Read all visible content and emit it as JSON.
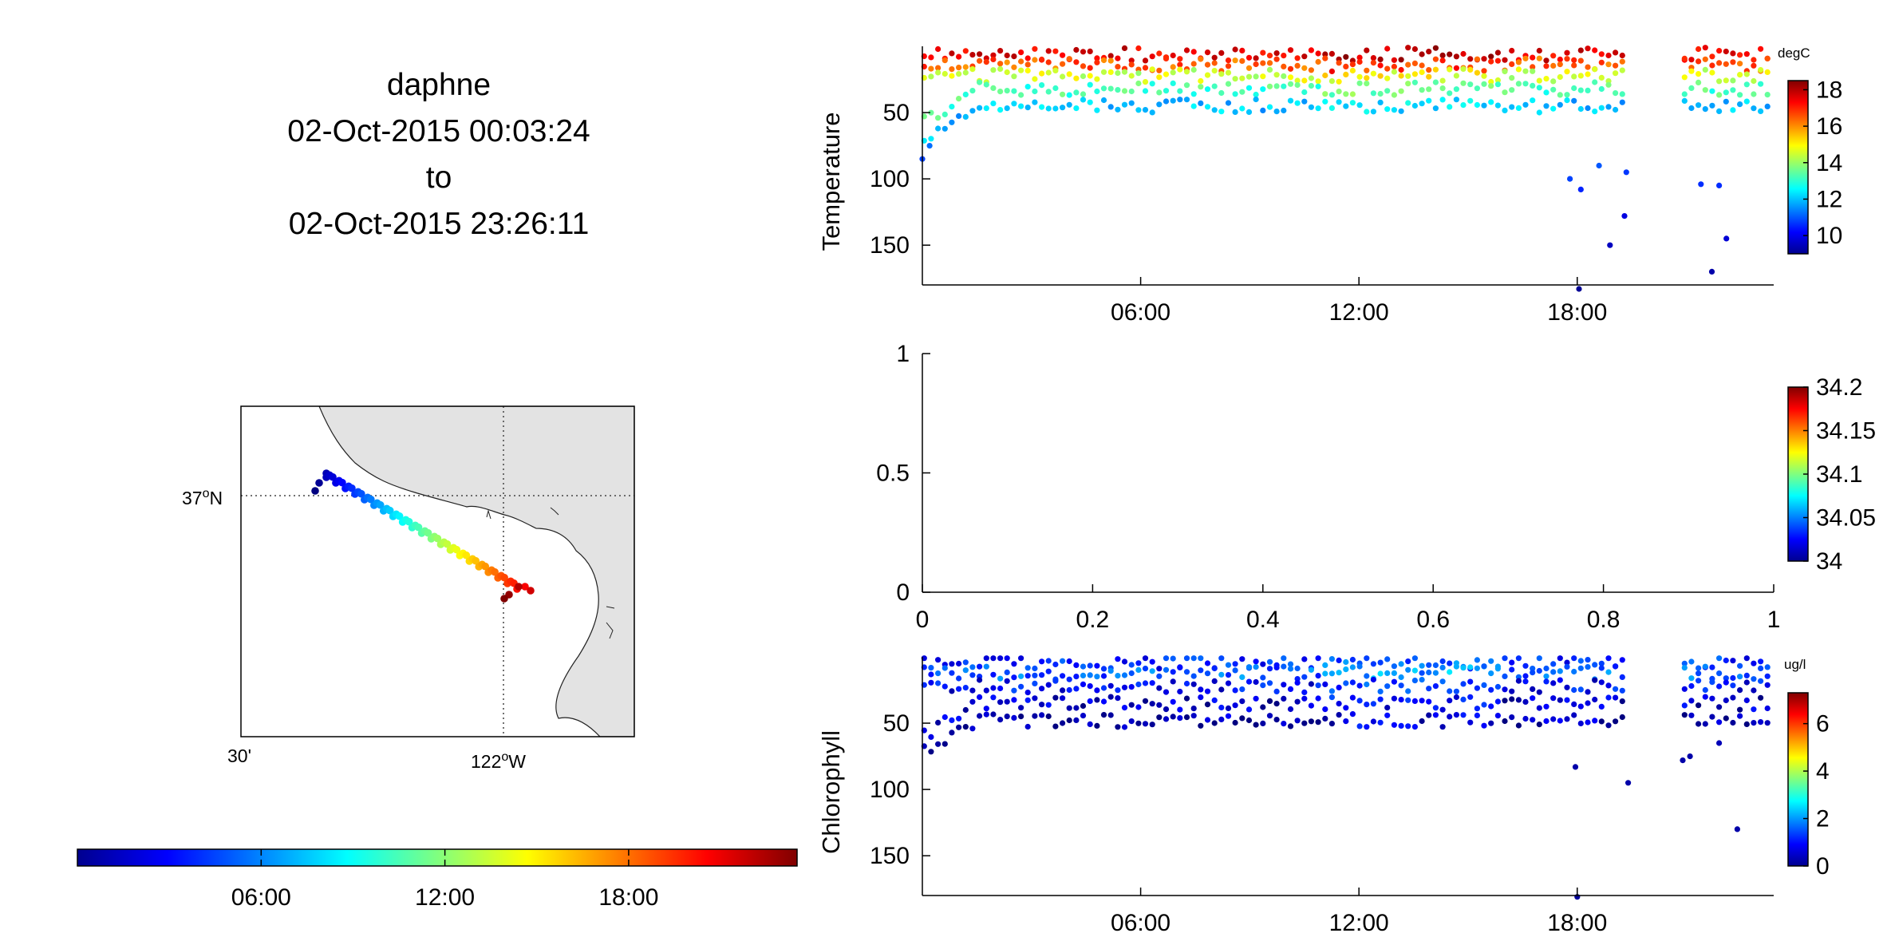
{
  "title": {
    "platform": "daphne",
    "start": "02-Oct-2015 00:03:24",
    "to": "to",
    "end": "02-Oct-2015 23:26:11"
  },
  "map": {
    "lat_label": "37",
    "lat_sup": "o",
    "lat_hemi": "N",
    "lon_label_left": "30'",
    "lon_label": "122",
    "lon_sup": "o",
    "lon_hemi": "W",
    "land_color": "#e3e3e3"
  },
  "time_colorbar": {
    "ticks": [
      "06:00",
      "12:00",
      "18:00"
    ],
    "tick_hours": [
      6,
      12,
      18
    ],
    "range_hours": [
      0,
      23.5
    ]
  },
  "chart_data": [
    {
      "type": "scatter",
      "ylabel": "Temperature",
      "colorbar_units": "degC",
      "x_unit": "hour of day",
      "xticks": [
        "06:00",
        "12:00",
        "18:00"
      ],
      "xtick_values": [
        6,
        12,
        18
      ],
      "xlim": [
        0,
        23.4
      ],
      "yticks": [
        "50",
        "100",
        "150"
      ],
      "ytick_values": [
        50,
        100,
        150
      ],
      "ylim": [
        180,
        0
      ],
      "clim": [
        9,
        18.5
      ],
      "colorbar_ticks": [
        "10",
        "12",
        "14",
        "16",
        "18"
      ],
      "colorbar_tick_values": [
        10,
        12,
        14,
        16,
        18
      ],
      "gap_hours": [
        19.4,
        20.8
      ],
      "layers": [
        {
          "depth": 6,
          "value": 17.5
        },
        {
          "depth": 14,
          "value": 16.5
        },
        {
          "depth": 22,
          "value": 14.5
        },
        {
          "depth": 32,
          "value": 13.2
        },
        {
          "depth": 45,
          "value": 12.0
        }
      ],
      "deep_points": [
        {
          "x": 0.0,
          "y": 85,
          "value": 10.8
        },
        {
          "x": 0.2,
          "y": 75,
          "value": 11.2
        },
        {
          "x": 17.8,
          "y": 100,
          "value": 10.8
        },
        {
          "x": 18.1,
          "y": 108,
          "value": 10.5
        },
        {
          "x": 18.6,
          "y": 90,
          "value": 11.0
        },
        {
          "x": 18.9,
          "y": 150,
          "value": 9.6
        },
        {
          "x": 19.3,
          "y": 128,
          "value": 9.9
        },
        {
          "x": 19.35,
          "y": 95,
          "value": 10.7
        },
        {
          "x": 18.05,
          "y": 183,
          "value": 9.2
        },
        {
          "x": 21.4,
          "y": 104,
          "value": 10.6
        },
        {
          "x": 21.9,
          "y": 105,
          "value": 10.6
        },
        {
          "x": 22.1,
          "y": 145,
          "value": 9.8
        },
        {
          "x": 21.7,
          "y": 170,
          "value": 9.4
        }
      ]
    },
    {
      "type": "scatter",
      "ylabel": "",
      "xticks": [
        "0",
        "0.2",
        "0.4",
        "0.6",
        "0.8",
        "1"
      ],
      "xtick_values": [
        0,
        0.2,
        0.4,
        0.6,
        0.8,
        1
      ],
      "xlim": [
        0,
        1
      ],
      "yticks": [
        "0",
        "0.5",
        "1"
      ],
      "ytick_values": [
        0,
        0.5,
        1
      ],
      "ylim": [
        0,
        1
      ],
      "clim": [
        34,
        34.2
      ],
      "colorbar_ticks": [
        "34",
        "34.05",
        "34.1",
        "34.15",
        "34.2"
      ],
      "colorbar_tick_values": [
        34,
        34.05,
        34.1,
        34.15,
        34.2
      ],
      "points": []
    },
    {
      "type": "scatter",
      "ylabel": "Chlorophyll",
      "colorbar_units": "ug/l",
      "x_unit": "hour of day",
      "xticks": [
        "06:00",
        "12:00",
        "18:00"
      ],
      "xtick_values": [
        6,
        12,
        18
      ],
      "xlim": [
        0,
        23.4
      ],
      "yticks": [
        "50",
        "100",
        "150"
      ],
      "ytick_values": [
        50,
        100,
        150
      ],
      "ylim": [
        180,
        0
      ],
      "clim": [
        0,
        7.3
      ],
      "colorbar_ticks": [
        "0",
        "2",
        "4",
        "6"
      ],
      "colorbar_tick_values": [
        0,
        2,
        4,
        6
      ],
      "gap_hours": [
        19.4,
        20.8
      ],
      "layers": [
        {
          "depth": 4,
          "value": 1.2
        },
        {
          "depth": 12,
          "value": 1.6
        },
        {
          "depth": 22,
          "value": 0.9
        },
        {
          "depth": 35,
          "value": 0.5
        },
        {
          "depth": 48,
          "value": 0.3
        }
      ],
      "deep_points": [
        {
          "x": 17.95,
          "y": 83,
          "value": 0.3
        },
        {
          "x": 19.4,
          "y": 95,
          "value": 0.3
        },
        {
          "x": 18.0,
          "y": 181,
          "value": 0.2
        },
        {
          "x": 21.1,
          "y": 75,
          "value": 0.3
        },
        {
          "x": 20.9,
          "y": 78,
          "value": 0.3
        },
        {
          "x": 21.9,
          "y": 65,
          "value": 0.4
        },
        {
          "x": 22.4,
          "y": 130,
          "value": 0.3
        }
      ]
    }
  ]
}
